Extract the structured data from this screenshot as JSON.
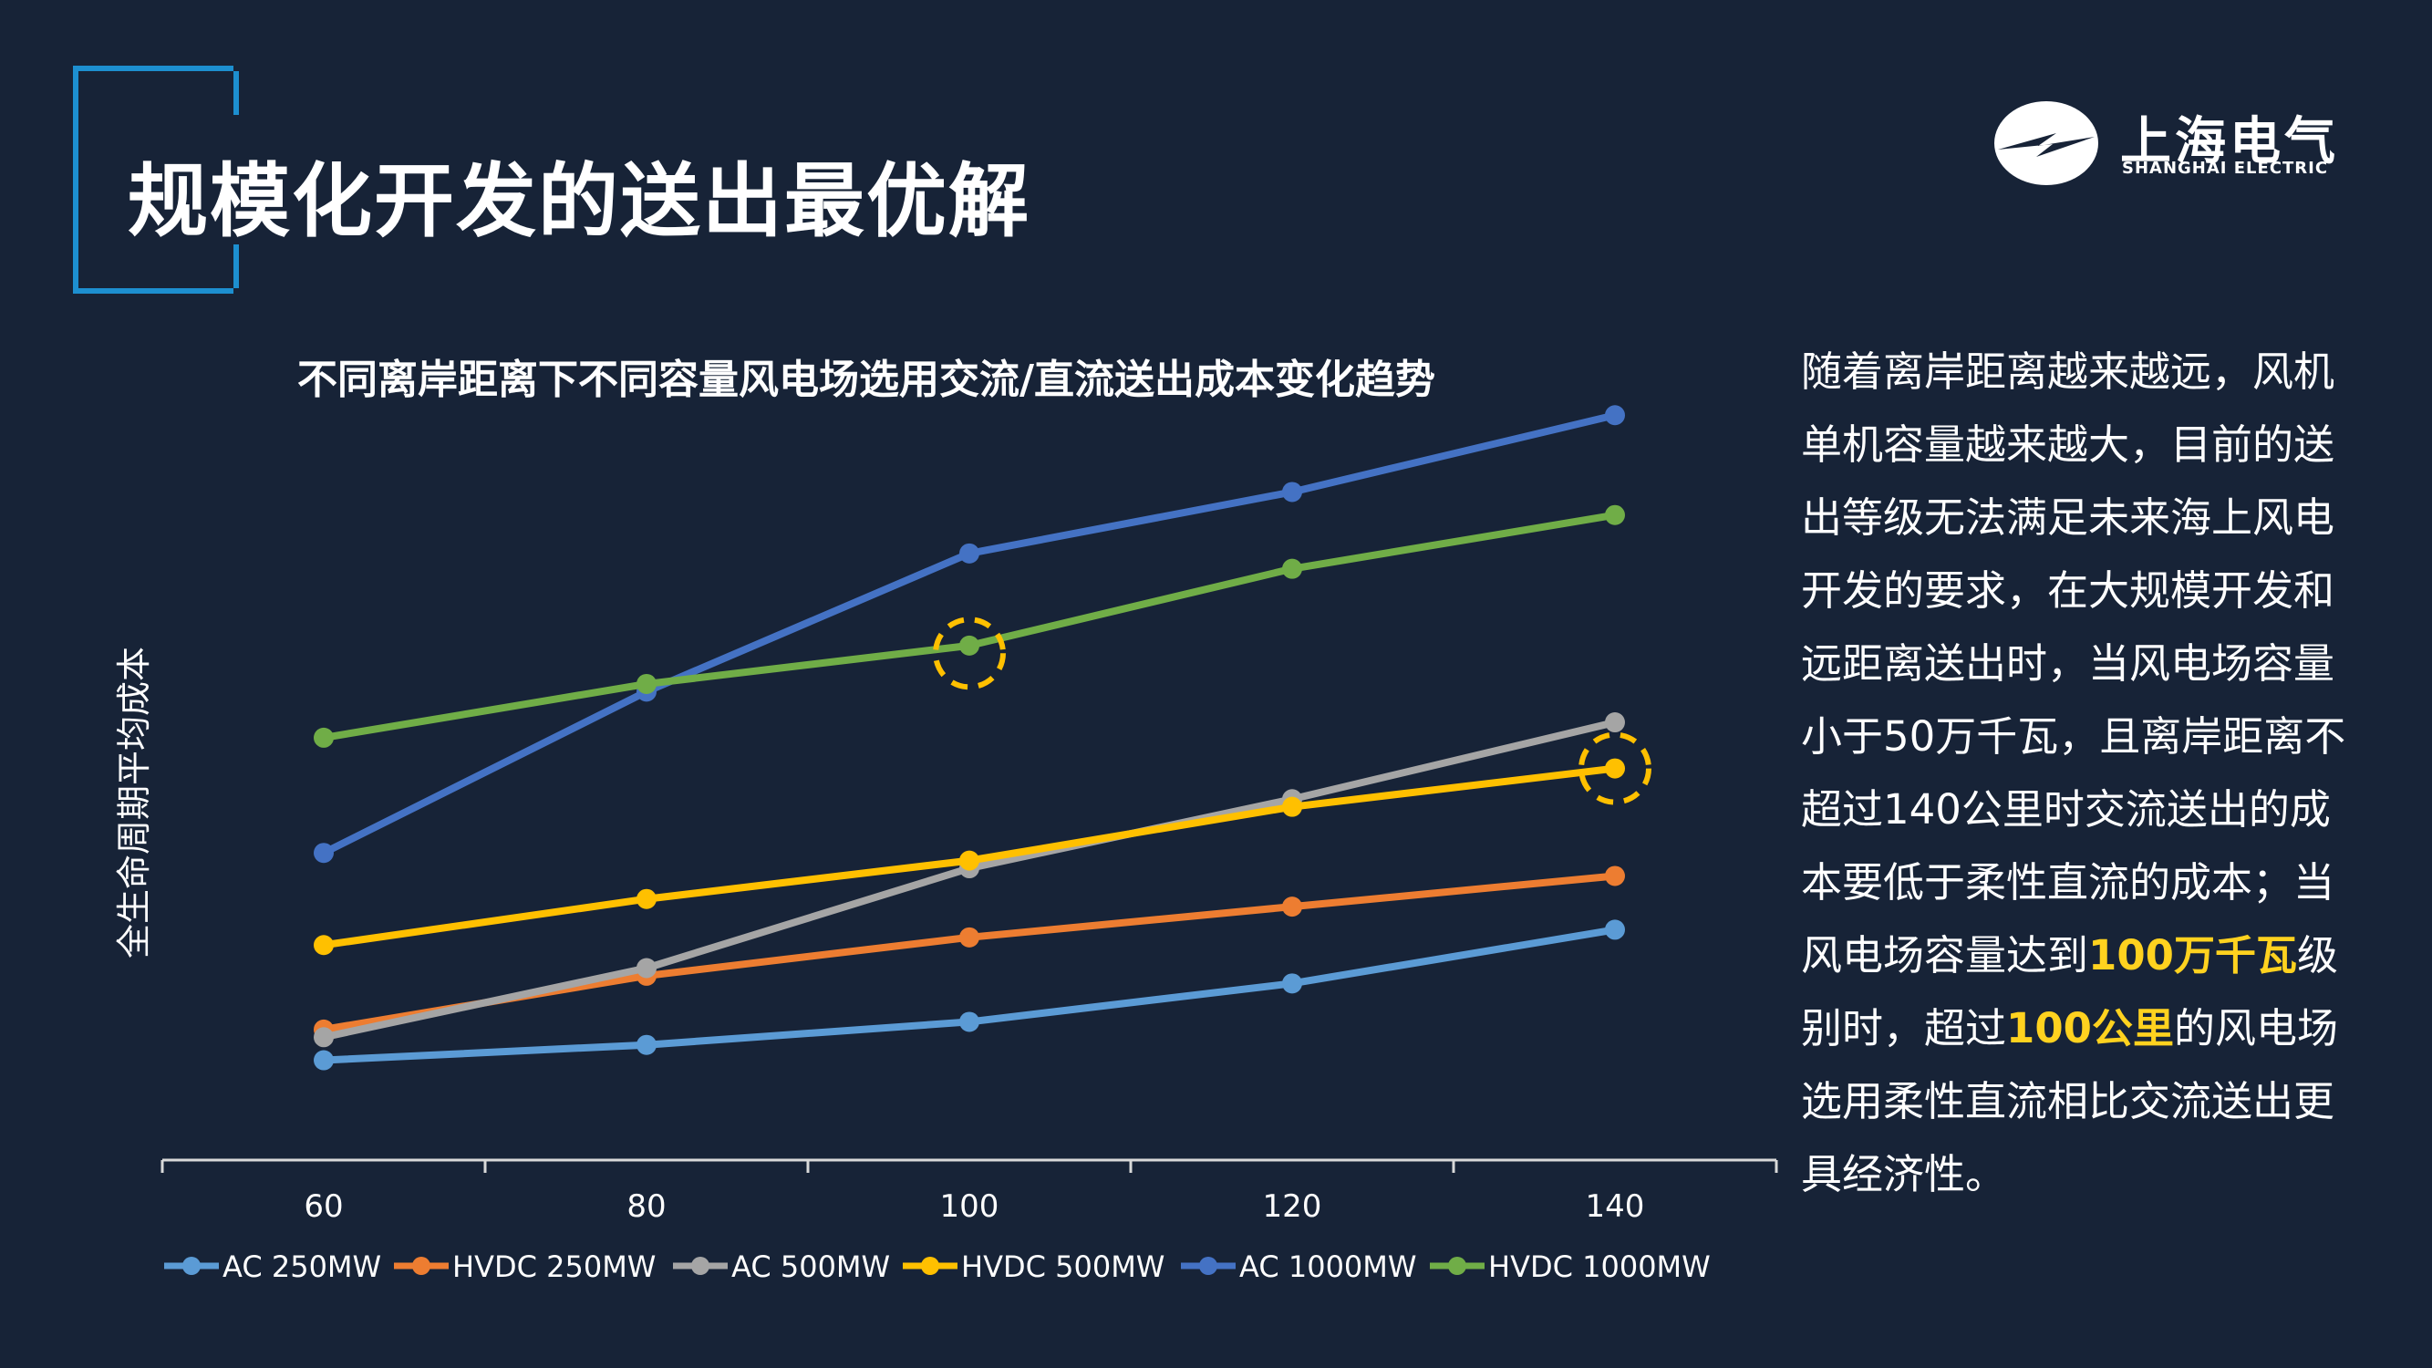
{
  "page": {
    "title": "规模化开发的送出最优解"
  },
  "logo": {
    "cn": "上海电气",
    "en": "SHANGHAI ELECTRIC"
  },
  "colors": {
    "background": "#172337",
    "accent": "#1d8fd0",
    "highlight": "#ffd21f"
  },
  "chart_data": {
    "type": "line",
    "title": "不同离岸距离下不同容量风电场选用交流/直流送出成本变化趋势",
    "xlabel": "",
    "ylabel": "全生命周期平均成本",
    "x": [
      60,
      80,
      100,
      120,
      140
    ],
    "xlim": [
      50,
      150
    ],
    "ylim": [
      0,
      100
    ],
    "grid": false,
    "legend": "bottom",
    "series": [
      {
        "name": "AC 250MW",
        "color": "#5b9bd5",
        "values": [
          13,
          15,
          18,
          23,
          30
        ]
      },
      {
        "name": "HVDC 250MW",
        "color": "#ed7d31",
        "values": [
          17,
          24,
          29,
          33,
          37
        ]
      },
      {
        "name": "AC 500MW",
        "color": "#a5a5a5",
        "values": [
          16,
          25,
          38,
          47,
          57
        ]
      },
      {
        "name": "HVDC 500MW",
        "color": "#ffc000",
        "values": [
          28,
          34,
          39,
          46,
          51
        ]
      },
      {
        "name": "AC 1000MW",
        "color": "#4472c4",
        "values": [
          40,
          61,
          79,
          87,
          97
        ]
      },
      {
        "name": "HVDC 1000MW",
        "color": "#70ad47",
        "values": [
          55,
          62,
          67,
          77,
          84
        ]
      }
    ],
    "annotations": [
      {
        "type": "dashed-circle",
        "x": 100,
        "y": 66,
        "color": "#ffc000"
      },
      {
        "type": "dashed-circle",
        "x": 140,
        "y": 51,
        "color": "#ffc000"
      }
    ]
  },
  "side_text": {
    "p1": "随着离岸距离越来越远，风机单机容量越来越大，目前的送出等级无法满足未来海上风电开发的要求，在大规模开发和远距离送出时，当风电场容量小于50万千瓦，且离岸距离不超过140公里时交流送出的成本要低于柔性直流的成本；当风电场容量达到",
    "h1": "100万千瓦",
    "p2": "级别时，超过",
    "h2": "100公里",
    "p3": "的风电场选用柔性直流相比交流送出更具经济性。"
  }
}
